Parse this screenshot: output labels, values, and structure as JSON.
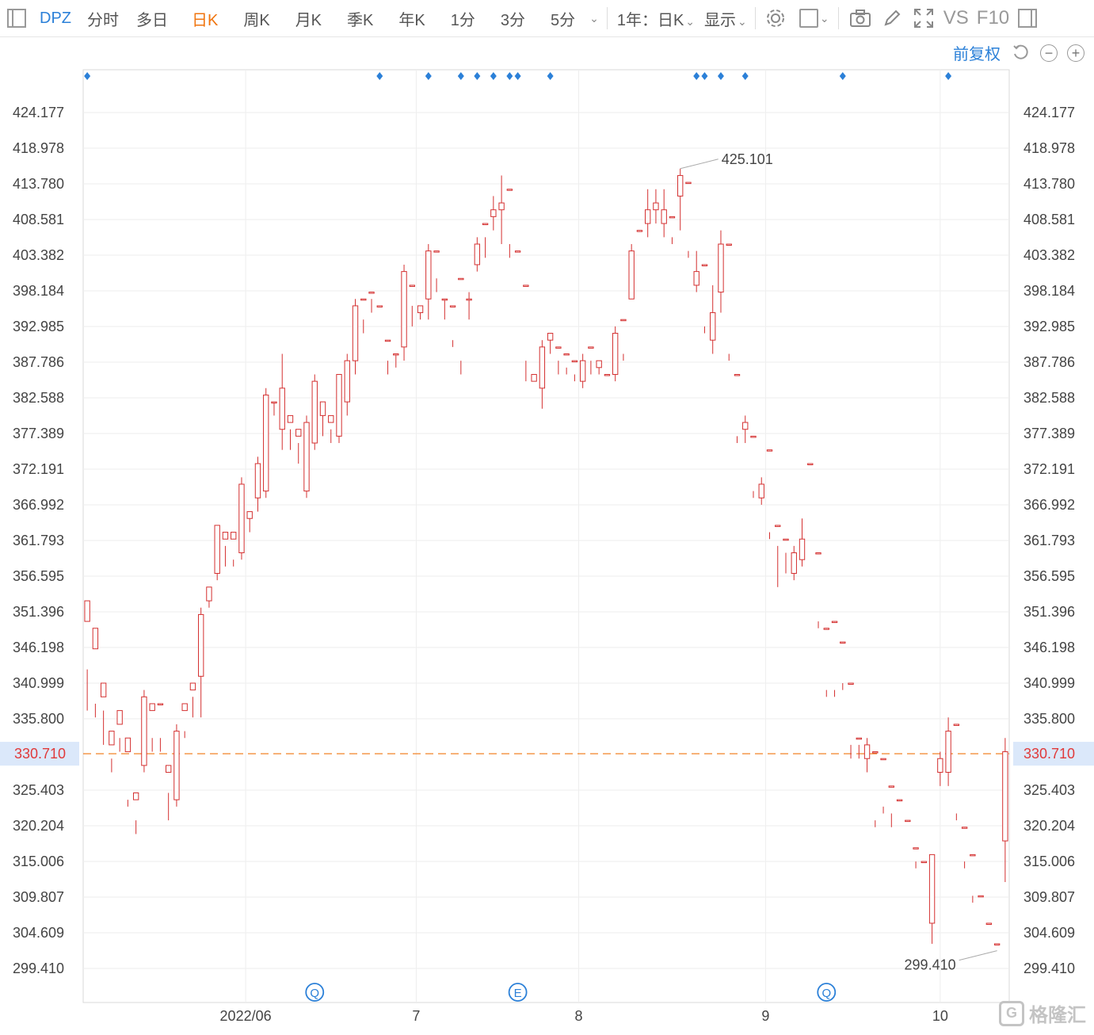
{
  "toolbar": {
    "symbol": "DPZ",
    "periods": [
      "分时",
      "多日",
      "日K",
      "周K",
      "月K",
      "季K",
      "年K",
      "1分",
      "3分",
      "5分"
    ],
    "active_period": "日K",
    "range_label": "1年：日K",
    "display_label": "显示",
    "vs_label": "VS",
    "f10_label": "F10"
  },
  "subbar": {
    "adjust_label": "前复权"
  },
  "watermark": {
    "text": "格隆汇"
  },
  "colors": {
    "up": "#d43030",
    "down": "#18a848",
    "accent": "#2b80d8",
    "current": "#f0750f"
  },
  "chart_data": {
    "type": "candlestick",
    "price_ticks": [
      "424.177",
      "418.978",
      "413.780",
      "408.581",
      "403.382",
      "398.184",
      "392.985",
      "387.786",
      "382.588",
      "377.389",
      "372.191",
      "366.992",
      "361.793",
      "356.595",
      "351.396",
      "346.198",
      "340.999",
      "335.800",
      "330.710",
      "325.403",
      "320.204",
      "315.006",
      "309.807",
      "304.609",
      "299.410"
    ],
    "ylim": [
      299.41,
      424.177
    ],
    "x_tick_labels": [
      "2022/06",
      "7",
      "8",
      "9",
      "10"
    ],
    "x_tick_positions": [
      19.5,
      40.5,
      60.5,
      83.5,
      105
    ],
    "current_price": "330.710",
    "max_label": "425.101",
    "min_label": "299.410",
    "event_markers": [
      {
        "label": "Q",
        "index": 28
      },
      {
        "label": "E",
        "index": 53
      },
      {
        "label": "Q",
        "index": 91
      }
    ],
    "dividend_dot_indices": [
      0,
      36,
      42,
      46,
      48,
      50,
      52,
      53,
      57,
      75,
      76,
      78,
      81,
      93,
      106
    ],
    "candles": [
      [
        350,
        353,
        343,
        337
      ],
      [
        346,
        349,
        338,
        336
      ],
      [
        339,
        341,
        337,
        332
      ],
      [
        332,
        334,
        330,
        328
      ],
      [
        335,
        337,
        333,
        331
      ],
      [
        331,
        333,
        324,
        323
      ],
      [
        324,
        325,
        321,
        319
      ],
      [
        329,
        339,
        340,
        328
      ],
      [
        337,
        338,
        333,
        331
      ],
      [
        338,
        338,
        333,
        331
      ],
      [
        328,
        329,
        325,
        321
      ],
      [
        324,
        334,
        335,
        323
      ],
      [
        337,
        338,
        334,
        333
      ],
      [
        340,
        341,
        339,
        336
      ],
      [
        342,
        351,
        352,
        336
      ],
      [
        353,
        355,
        354,
        352
      ],
      [
        357,
        364,
        364,
        356
      ],
      [
        362,
        363,
        361,
        358
      ],
      [
        362,
        363,
        359,
        358
      ],
      [
        360,
        370,
        371,
        359
      ],
      [
        365,
        366,
        366,
        363
      ],
      [
        368,
        373,
        374,
        366
      ],
      [
        369,
        383,
        384,
        368
      ],
      [
        382,
        382,
        382,
        380
      ],
      [
        378,
        384,
        389,
        375
      ],
      [
        379,
        380,
        378,
        375
      ],
      [
        377,
        378,
        376,
        373
      ],
      [
        369,
        379,
        380,
        368
      ],
      [
        376,
        385,
        386,
        375
      ],
      [
        380,
        382,
        381,
        377
      ],
      [
        379,
        380,
        378,
        376
      ],
      [
        377,
        386,
        386,
        376
      ],
      [
        382,
        388,
        389,
        380
      ],
      [
        388,
        396,
        397,
        386
      ],
      [
        397,
        397,
        394,
        392
      ],
      [
        398,
        398,
        397,
        395
      ],
      [
        396,
        396,
        390,
        390
      ],
      [
        391,
        391,
        388,
        386
      ],
      [
        389,
        389,
        389,
        387
      ],
      [
        390,
        401,
        402,
        388
      ],
      [
        399,
        399,
        396,
        393
      ],
      [
        395,
        396,
        396,
        394
      ],
      [
        397,
        404,
        405,
        394
      ],
      [
        404,
        404,
        400,
        398
      ],
      [
        397,
        397,
        397,
        394
      ],
      [
        396,
        396,
        391,
        390
      ],
      [
        400,
        400,
        388,
        386
      ],
      [
        397,
        397,
        398,
        394
      ],
      [
        402,
        405,
        406,
        401
      ],
      [
        408,
        408,
        406,
        403
      ],
      [
        409,
        410,
        412,
        407
      ],
      [
        410,
        411,
        415,
        405
      ],
      [
        413,
        413,
        405,
        403
      ],
      [
        404,
        404,
        399,
        399
      ],
      [
        399,
        399,
        388,
        385
      ],
      [
        385,
        386,
        384,
        384
      ],
      [
        384,
        390,
        391,
        381
      ],
      [
        391,
        392,
        392,
        389
      ],
      [
        390,
        390,
        388,
        386
      ],
      [
        389,
        389,
        387,
        386
      ],
      [
        388,
        388,
        386,
        385
      ],
      [
        385,
        388,
        389,
        384
      ],
      [
        390,
        390,
        388,
        386
      ],
      [
        387,
        388,
        388,
        386
      ],
      [
        386,
        386,
        384,
        384
      ],
      [
        386,
        392,
        393,
        385
      ],
      [
        394,
        394,
        389,
        388
      ],
      [
        397,
        404,
        405,
        397
      ],
      [
        407,
        407,
        403,
        403
      ],
      [
        408,
        410,
        413,
        406
      ],
      [
        410,
        411,
        413,
        408
      ],
      [
        408,
        410,
        413,
        406
      ],
      [
        409,
        409,
        406,
        405
      ],
      [
        412,
        415,
        416,
        407
      ],
      [
        414,
        414,
        404,
        403
      ],
      [
        399,
        401,
        404,
        398
      ],
      [
        402,
        402,
        393,
        392
      ],
      [
        391,
        395,
        399,
        389
      ],
      [
        398,
        405,
        407,
        395
      ],
      [
        405,
        405,
        389,
        388
      ],
      [
        386,
        386,
        377,
        376
      ],
      [
        378,
        379,
        380,
        376
      ],
      [
        377,
        377,
        369,
        368
      ],
      [
        368,
        370,
        371,
        367
      ],
      [
        375,
        375,
        363,
        362
      ],
      [
        364,
        364,
        361,
        355
      ],
      [
        362,
        362,
        360,
        357
      ],
      [
        357,
        360,
        361,
        356
      ],
      [
        359,
        362,
        365,
        358
      ],
      [
        373,
        373,
        362,
        362
      ],
      [
        360,
        360,
        350,
        349
      ],
      [
        349,
        349,
        340,
        339
      ],
      [
        350,
        350,
        340,
        339
      ],
      [
        347,
        347,
        341,
        340
      ],
      [
        341,
        341,
        332,
        330
      ],
      [
        333,
        333,
        332,
        330
      ],
      [
        330,
        332,
        333,
        328
      ],
      [
        331,
        331,
        321,
        320
      ],
      [
        330,
        330,
        323,
        322
      ],
      [
        326,
        326,
        322,
        320
      ],
      [
        324,
        324,
        313,
        313
      ],
      [
        321,
        321,
        316,
        316
      ],
      [
        317,
        317,
        315,
        314
      ],
      [
        315,
        315,
        310,
        310
      ],
      [
        306,
        316,
        316,
        303
      ],
      [
        328,
        330,
        331,
        326
      ],
      [
        328,
        334,
        336,
        326
      ],
      [
        335,
        335,
        322,
        321
      ],
      [
        320,
        320,
        315,
        314
      ],
      [
        316,
        316,
        310,
        309
      ],
      [
        310,
        310,
        305,
        305
      ],
      [
        306,
        306,
        303,
        303
      ],
      [
        303,
        303,
        302,
        302
      ],
      [
        318,
        331,
        333,
        312
      ]
    ]
  }
}
